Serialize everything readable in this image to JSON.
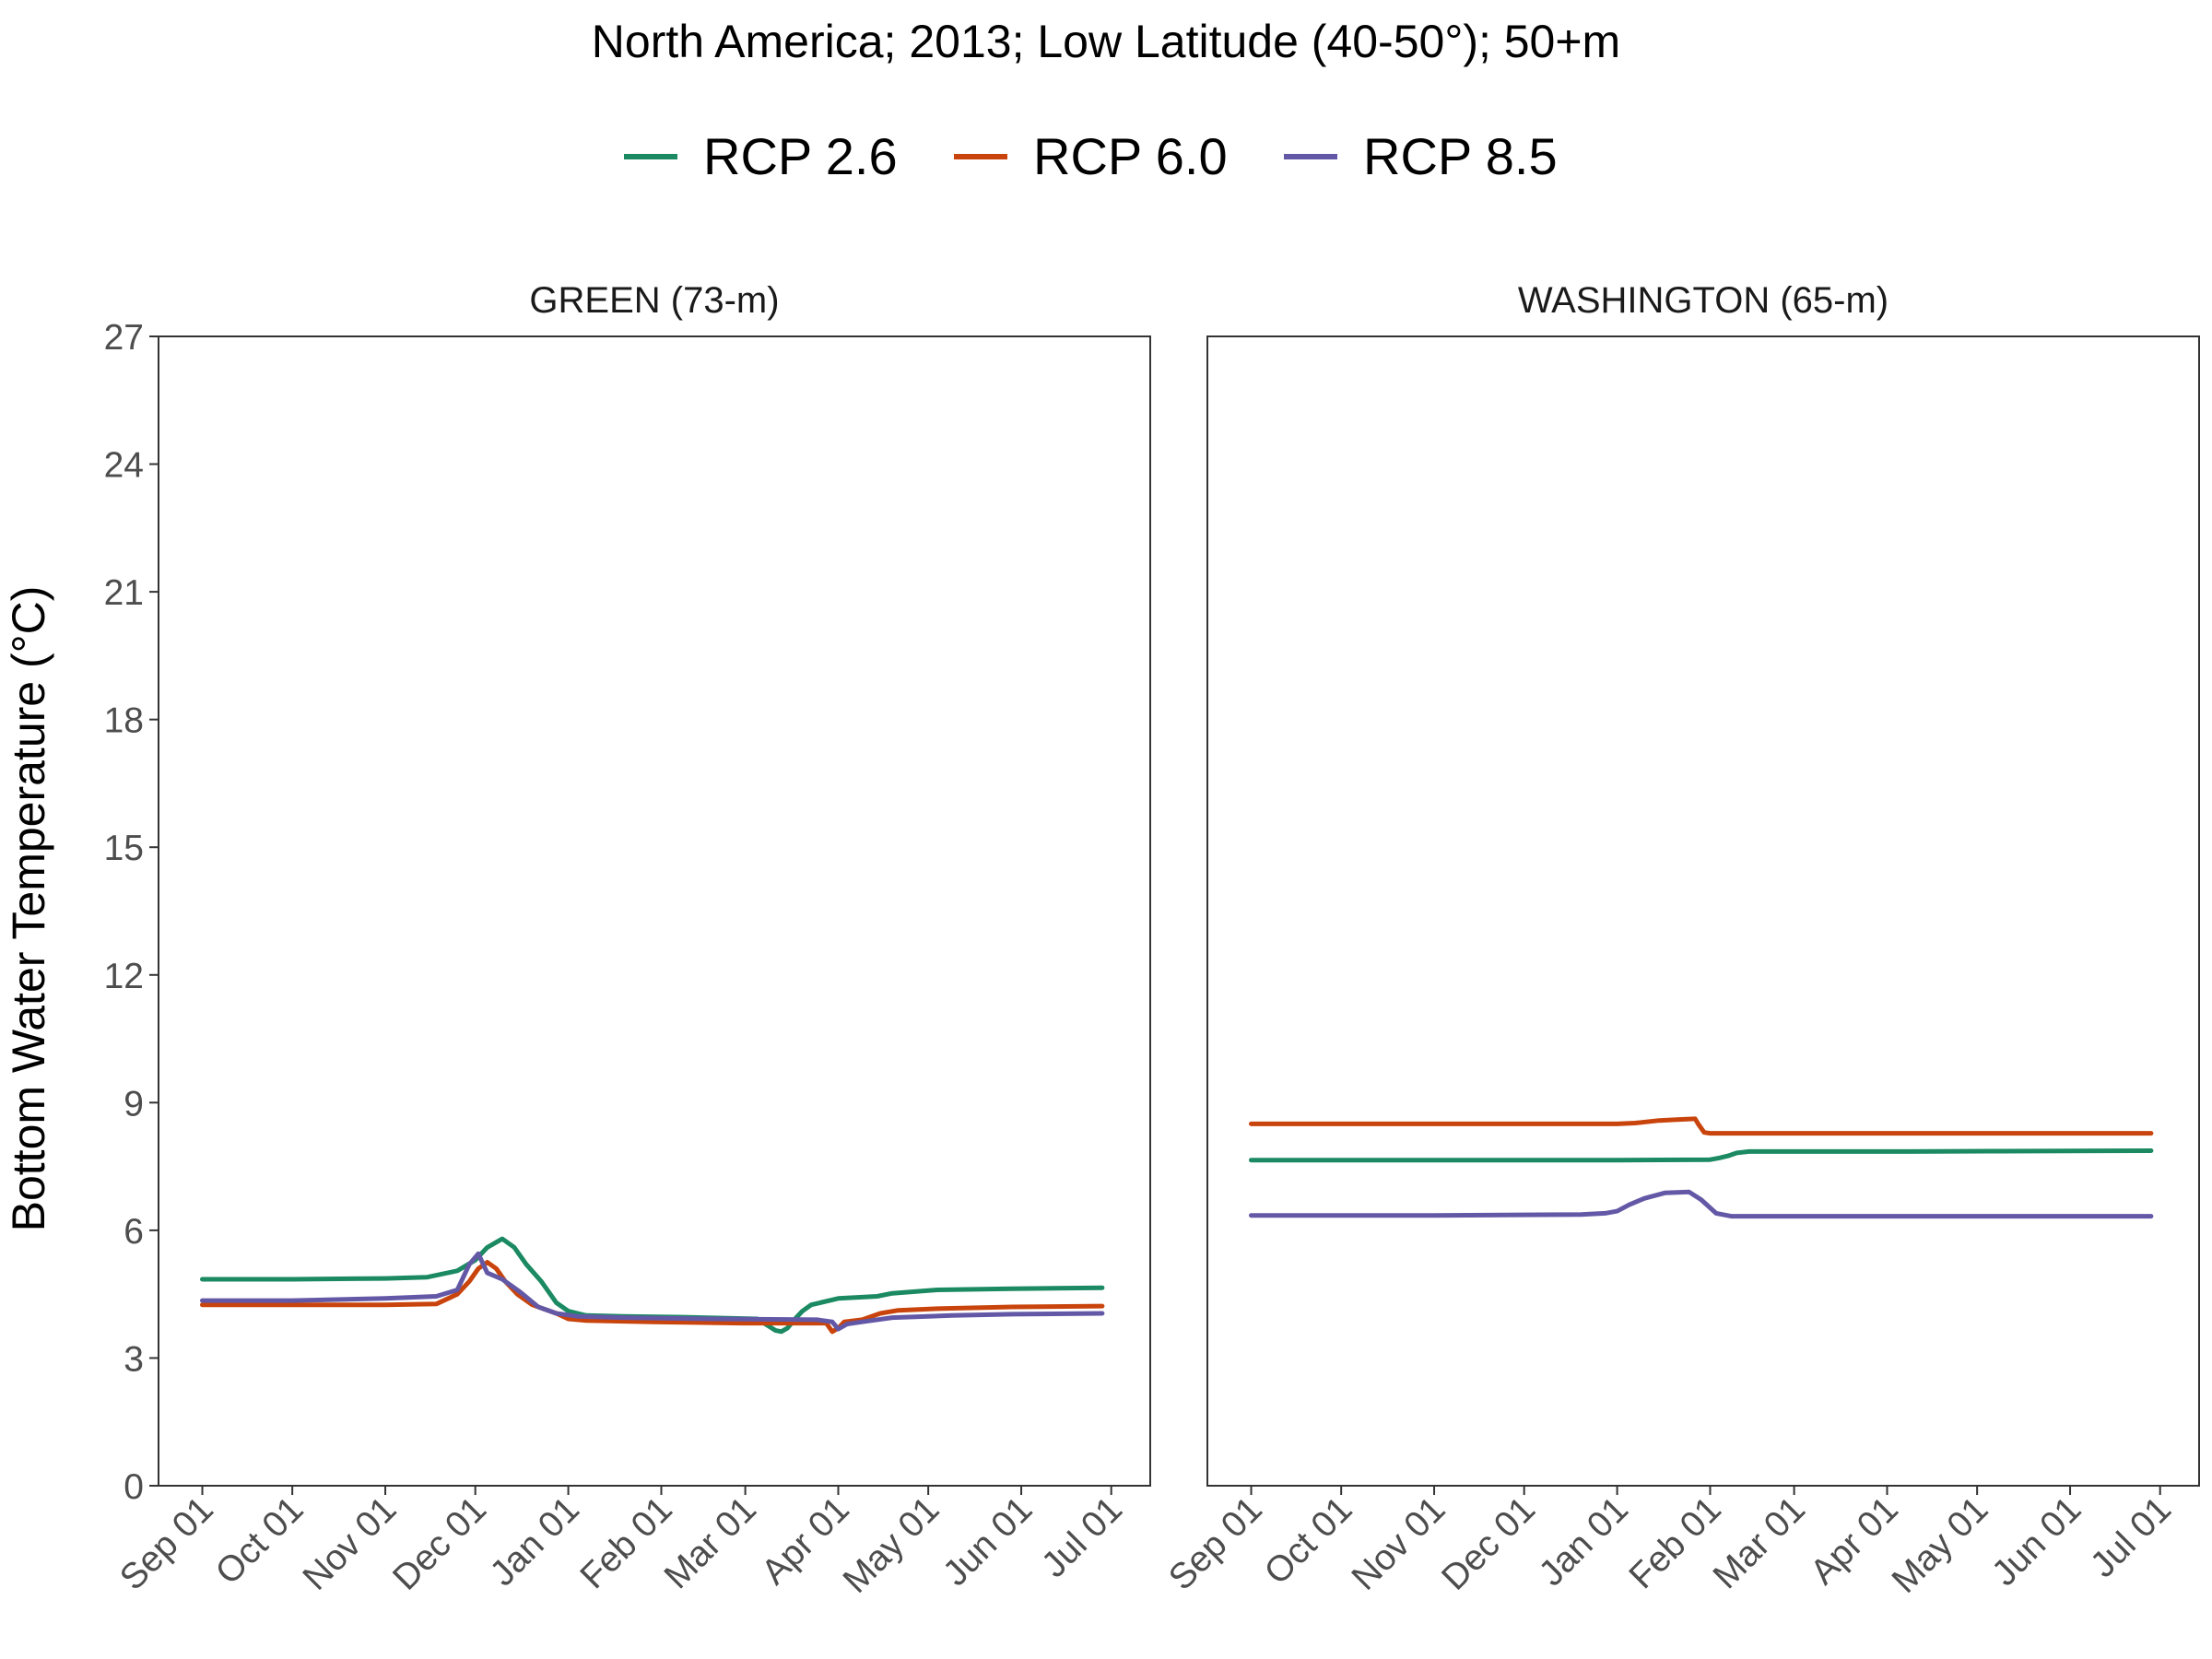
{
  "chart_data": {
    "type": "line",
    "title": "North America;  2013;  Low Latitude (40-50°);  50+m",
    "ylabel": "Bottom Water Temperature (°C)",
    "xlabel": "",
    "ylim": [
      0,
      27
    ],
    "yticks": [
      0,
      3,
      6,
      9,
      12,
      15,
      18,
      21,
      24,
      27
    ],
    "grid": false,
    "legend_position": "top",
    "legend": [
      {
        "name": "RCP 2.6",
        "color": "#1b8a63"
      },
      {
        "name": "RCP 6.0",
        "color": "#c9440c"
      },
      {
        "name": "RCP 8.5",
        "color": "#6358a6"
      }
    ],
    "panels": [
      {
        "title": "GREEN (73-m)",
        "x_tick_labels": [
          "Sep 01",
          "Oct 01",
          "Nov 01",
          "Dec 01",
          "Jan 01",
          "Feb 01",
          "Mar 01",
          "Apr 01",
          "May 01",
          "Jun 01",
          "Jul 01"
        ],
        "xlim": [
          -14.6,
          316
        ],
        "series": [
          {
            "name": "RCP 2.6",
            "color": "#1b8a63",
            "x": [
              0,
              30,
              61,
              75,
              85,
              91,
              95,
              100,
              104,
              108,
              113,
              118,
              122,
              128,
              140,
              160,
              185,
              191,
              193,
              195,
              198,
              200,
              203,
              212,
              225,
              230,
              245,
              270,
              300
            ],
            "y": [
              4.85,
              4.85,
              4.87,
              4.9,
              5.05,
              5.3,
              5.6,
              5.8,
              5.6,
              5.2,
              4.8,
              4.3,
              4.1,
              4.0,
              3.98,
              3.96,
              3.92,
              3.65,
              3.62,
              3.7,
              3.95,
              4.1,
              4.25,
              4.4,
              4.45,
              4.52,
              4.6,
              4.63,
              4.65
            ]
          },
          {
            "name": "RCP 6.0",
            "color": "#c9440c",
            "x": [
              0,
              30,
              61,
              78,
              85,
              89,
              92,
              95,
              98,
              101,
              105,
              110,
              118,
              122,
              128,
              150,
              180,
              208,
              210,
              212,
              214,
              220,
              226,
              232,
              245,
              270,
              300
            ],
            "y": [
              4.25,
              4.25,
              4.25,
              4.27,
              4.5,
              4.8,
              5.1,
              5.25,
              5.1,
              4.8,
              4.5,
              4.25,
              4.05,
              3.92,
              3.88,
              3.85,
              3.82,
              3.82,
              3.62,
              3.7,
              3.85,
              3.9,
              4.05,
              4.12,
              4.16,
              4.2,
              4.22
            ]
          },
          {
            "name": "RCP 8.5",
            "color": "#6358a6",
            "x": [
              0,
              30,
              61,
              78,
              85,
              89,
              92,
              95,
              100,
              106,
              112,
              118,
              125,
              140,
              170,
              205,
              210,
              212,
              215,
              220,
              230,
              250,
              270,
              300
            ],
            "y": [
              4.35,
              4.35,
              4.4,
              4.45,
              4.6,
              5.2,
              5.45,
              5.0,
              4.85,
              4.55,
              4.2,
              4.05,
              3.98,
              3.95,
              3.92,
              3.9,
              3.85,
              3.68,
              3.8,
              3.85,
              3.95,
              4.0,
              4.03,
              4.05
            ]
          }
        ]
      },
      {
        "title": "WASHINGTON (65-m)",
        "x_tick_labels": [
          "Sep 01",
          "Oct 01",
          "Nov 01",
          "Dec 01",
          "Jan 01",
          "Feb 01",
          "Mar 01",
          "Apr 01",
          "May 01",
          "Jun 01",
          "Jul 01"
        ],
        "xlim": [
          -14.6,
          316
        ],
        "series": [
          {
            "name": "RCP 2.6",
            "color": "#1b8a63",
            "x": [
              0,
              61,
              122,
              153,
              156,
              159,
              162,
              166,
              180,
              220,
              250,
              300
            ],
            "y": [
              7.65,
              7.65,
              7.65,
              7.66,
              7.7,
              7.75,
              7.82,
              7.85,
              7.85,
              7.85,
              7.86,
              7.87
            ]
          },
          {
            "name": "RCP 6.0",
            "color": "#c9440c",
            "x": [
              0,
              61,
              122,
              128,
              136,
              142,
              148,
              149,
              151,
              153,
              170,
              210,
              250,
              300
            ],
            "y": [
              8.5,
              8.5,
              8.5,
              8.52,
              8.58,
              8.6,
              8.62,
              8.5,
              8.3,
              8.28,
              8.28,
              8.28,
              8.28,
              8.28
            ]
          },
          {
            "name": "RCP 8.5",
            "color": "#6358a6",
            "x": [
              0,
              61,
              110,
              118,
              122,
              126,
              131,
              138,
              146,
              150,
              155,
              160,
              170,
              210,
              250,
              300
            ],
            "y": [
              6.35,
              6.35,
              6.37,
              6.4,
              6.45,
              6.6,
              6.75,
              6.88,
              6.9,
              6.72,
              6.4,
              6.33,
              6.33,
              6.33,
              6.33,
              6.33
            ]
          }
        ]
      }
    ]
  }
}
